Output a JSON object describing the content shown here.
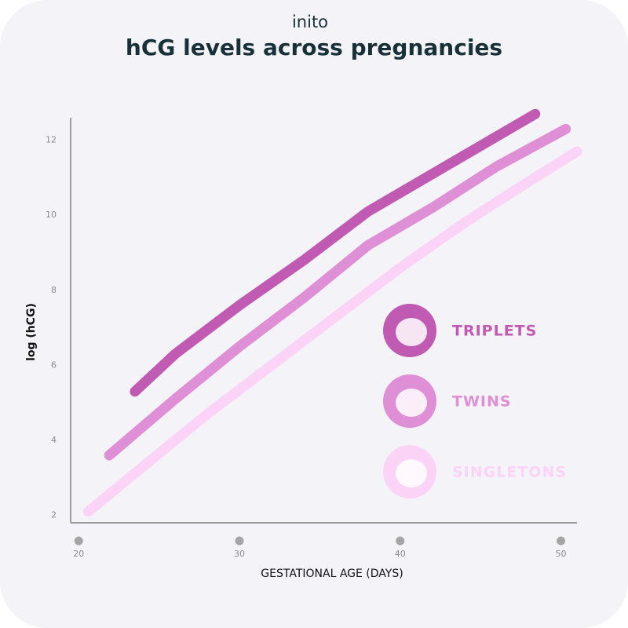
{
  "brand": "inito",
  "chart_data": {
    "type": "line",
    "title": "hCG levels across pregnancies",
    "x_label": "GESTATIONAL AGE (DAYS)",
    "y_label": "log (hCG)",
    "xlim": [
      19.5,
      51
    ],
    "ylim": [
      1.8,
      12.6
    ],
    "xticks": [
      20,
      30,
      40,
      50
    ],
    "yticks": [
      2,
      4,
      6,
      8,
      10,
      12
    ],
    "series": [
      {
        "name": "TRIPLETS",
        "color": "#c05ab2",
        "x": [
          23.5,
          26,
          30,
          34,
          38,
          42,
          46,
          48.4
        ],
        "values": [
          5.3,
          6.3,
          7.6,
          8.8,
          10.1,
          11.1,
          12.1,
          12.7
        ]
      },
      {
        "name": "TWINS",
        "color": "#df8fd6",
        "x": [
          21.9,
          26,
          30,
          34,
          38,
          42,
          46,
          50.3
        ],
        "values": [
          3.6,
          5.1,
          6.5,
          7.8,
          9.2,
          10.2,
          11.3,
          12.3
        ]
      },
      {
        "name": "SINGLETONS",
        "color": "#fbd3f6",
        "x": [
          20.6,
          24,
          28,
          32,
          36,
          40,
          44,
          48,
          51
        ],
        "values": [
          2.1,
          3.3,
          4.7,
          6.0,
          7.3,
          8.6,
          9.8,
          10.9,
          11.7
        ]
      }
    ]
  }
}
